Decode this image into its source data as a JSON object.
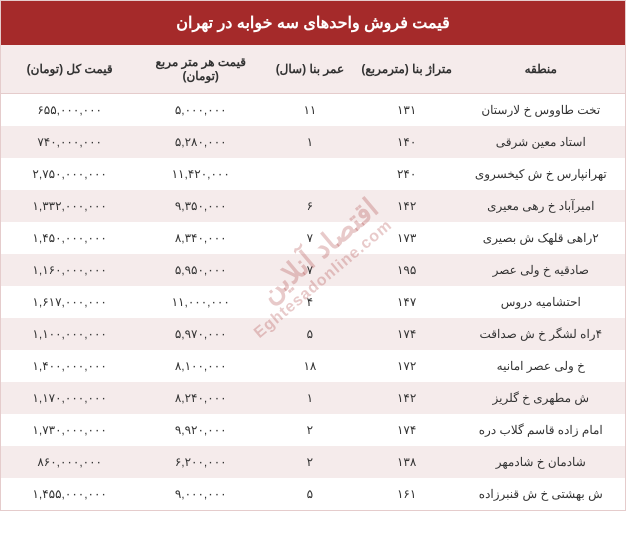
{
  "header": {
    "title": "قیمت فروش واحدهای سه خوابه در تهران"
  },
  "table": {
    "columns": [
      {
        "key": "region",
        "label": "منطقه"
      },
      {
        "key": "area",
        "label": "متراژ بنا (مترمربع)"
      },
      {
        "key": "age",
        "label": "عمر بنا (سال)"
      },
      {
        "key": "price_per_m",
        "label": "قیمت هر متر مربع (تومان)"
      },
      {
        "key": "price_total",
        "label": "قیمت کل (تومان)"
      }
    ],
    "rows": [
      {
        "region": "تخت طاووس خ لارستان",
        "area": "۱۳۱",
        "age": "۱۱",
        "price_per_m": "۵,۰۰۰,۰۰۰",
        "price_total": "۶۵۵,۰۰۰,۰۰۰"
      },
      {
        "region": "استاد معین شرقی",
        "area": "۱۴۰",
        "age": "۱",
        "price_per_m": "۵,۲۸۰,۰۰۰",
        "price_total": "۷۴۰,۰۰۰,۰۰۰"
      },
      {
        "region": "تهرانپارس خ ش کیخسروی",
        "area": "۲۴۰",
        "age": "",
        "price_per_m": "۱۱,۴۲۰,۰۰۰",
        "price_total": "۲,۷۵۰,۰۰۰,۰۰۰"
      },
      {
        "region": "امیرآباد خ رهی معیری",
        "area": "۱۴۲",
        "age": "۶",
        "price_per_m": "۹,۳۵۰,۰۰۰",
        "price_total": "۱,۳۳۲,۰۰۰,۰۰۰"
      },
      {
        "region": "۲راهی قلهک ش بصیری",
        "area": "۱۷۳",
        "age": "۷",
        "price_per_m": "۸,۳۴۰,۰۰۰",
        "price_total": "۱,۴۵۰,۰۰۰,۰۰۰"
      },
      {
        "region": "صادقیه خ ولی عصر",
        "area": "۱۹۵",
        "age": "۷",
        "price_per_m": "۵,۹۵۰,۰۰۰",
        "price_total": "۱,۱۶۰,۰۰۰,۰۰۰"
      },
      {
        "region": "احتشامیه دروس",
        "area": "۱۴۷",
        "age": "۴",
        "price_per_m": "۱۱,۰۰۰,۰۰۰",
        "price_total": "۱,۶۱۷,۰۰۰,۰۰۰"
      },
      {
        "region": "۴راه لشگر خ ش صداقت",
        "area": "۱۷۴",
        "age": "۵",
        "price_per_m": "۵,۹۷۰,۰۰۰",
        "price_total": "۱,۱۰۰,۰۰۰,۰۰۰"
      },
      {
        "region": "خ ولی عصر امانیه",
        "area": "۱۷۲",
        "age": "۱۸",
        "price_per_m": "۸,۱۰۰,۰۰۰",
        "price_total": "۱,۴۰۰,۰۰۰,۰۰۰"
      },
      {
        "region": "ش مطهری خ گلریز",
        "area": "۱۴۲",
        "age": "۱",
        "price_per_m": "۸,۲۴۰,۰۰۰",
        "price_total": "۱,۱۷۰,۰۰۰,۰۰۰"
      },
      {
        "region": "امام زاده قاسم گلاب دره",
        "area": "۱۷۴",
        "age": "۲",
        "price_per_m": "۹,۹۲۰,۰۰۰",
        "price_total": "۱,۷۳۰,۰۰۰,۰۰۰"
      },
      {
        "region": "شادمان خ شادمهر",
        "area": "۱۳۸",
        "age": "۲",
        "price_per_m": "۶,۲۰۰,۰۰۰",
        "price_total": "۸۶۰,۰۰۰,۰۰۰"
      },
      {
        "region": "ش بهشتی خ ش قنبرزاده",
        "area": "۱۶۱",
        "age": "۵",
        "price_per_m": "۹,۰۰۰,۰۰۰",
        "price_total": "۱,۴۵۵,۰۰۰,۰۰۰"
      }
    ]
  },
  "watermark": {
    "line1": "اقتصاد آنلاین",
    "line2": "Eghtesadonline.com"
  },
  "styles": {
    "header_bg": "#a52a2a",
    "header_text": "#ffffff",
    "row_alt_bg": "#f5ebeb",
    "row_bg": "#ffffff",
    "border_color": "#e5cccc",
    "text_color": "#333333",
    "watermark_color": "rgba(165, 42, 42, 0.25)"
  }
}
